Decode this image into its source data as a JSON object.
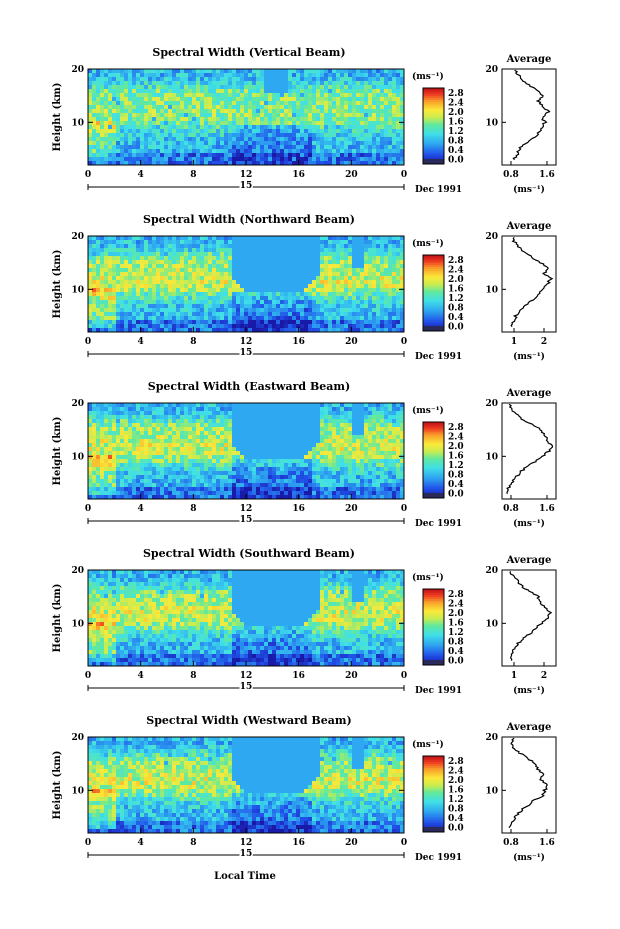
{
  "figure": {
    "xlabel": "Local Time",
    "date_label": "Dec 1991",
    "day_label": "15",
    "avg_title": "Average",
    "colorbar_unit": "(ms⁻¹)"
  },
  "chart_data": [
    {
      "type": "heatmap",
      "title": "Spectral Width (Vertical Beam)",
      "ylabel": "Height (km)",
      "xlabel": "",
      "x_ticks": [
        "0",
        "4",
        "8",
        "12",
        "16",
        "20",
        "0"
      ],
      "y_ticks": [
        "10",
        "20"
      ],
      "xlim": [
        0,
        24
      ],
      "ylim": [
        2,
        20
      ],
      "colorbar_ticks": [
        "0.0",
        "0.4",
        "0.8",
        "1.2",
        "1.6",
        "2.0",
        "2.4",
        "2.8"
      ],
      "colorbar_range": [
        0,
        3.2
      ],
      "profile": {
        "title": "Average",
        "xlabel": "(ms⁻¹)",
        "x_ticks": [
          "0.8",
          "1.6"
        ],
        "xlim": [
          0.6,
          1.8
        ],
        "y_ticks": [
          "10",
          "20"
        ],
        "points": [
          [
            0.85,
            3
          ],
          [
            0.95,
            4
          ],
          [
            0.98,
            5
          ],
          [
            1.1,
            6
          ],
          [
            1.3,
            7
          ],
          [
            1.4,
            8
          ],
          [
            1.5,
            9
          ],
          [
            1.55,
            10
          ],
          [
            1.5,
            11
          ],
          [
            1.62,
            12
          ],
          [
            1.5,
            13
          ],
          [
            1.4,
            14
          ],
          [
            1.52,
            15
          ],
          [
            1.35,
            16
          ],
          [
            1.2,
            17
          ],
          [
            1.05,
            18
          ],
          [
            0.95,
            19
          ],
          [
            0.9,
            20
          ]
        ]
      }
    },
    {
      "type": "heatmap",
      "title": "Spectral Width (Northward Beam)",
      "ylabel": "Height (km)",
      "xlabel": "",
      "x_ticks": [
        "0",
        "4",
        "8",
        "12",
        "16",
        "20",
        "0"
      ],
      "y_ticks": [
        "10",
        "20"
      ],
      "xlim": [
        0,
        24
      ],
      "ylim": [
        2,
        20
      ],
      "colorbar_ticks": [
        "0.0",
        "0.4",
        "0.8",
        "1.2",
        "1.6",
        "2.0",
        "2.4",
        "2.8"
      ],
      "colorbar_range": [
        0,
        3.2
      ],
      "profile": {
        "title": "Average",
        "xlabel": "(ms⁻¹)",
        "x_ticks": [
          "1",
          "2"
        ],
        "xlim": [
          0.6,
          2.4
        ],
        "y_ticks": [
          "10",
          "20"
        ],
        "points": [
          [
            0.9,
            3
          ],
          [
            1.0,
            4
          ],
          [
            1.05,
            5
          ],
          [
            1.2,
            6
          ],
          [
            1.4,
            7
          ],
          [
            1.6,
            8
          ],
          [
            1.8,
            9
          ],
          [
            2.0,
            10
          ],
          [
            2.1,
            11
          ],
          [
            2.25,
            12
          ],
          [
            2.0,
            13
          ],
          [
            2.1,
            14
          ],
          [
            1.9,
            15
          ],
          [
            1.6,
            16
          ],
          [
            1.3,
            17
          ],
          [
            1.15,
            18
          ],
          [
            1.0,
            19
          ],
          [
            0.95,
            20
          ]
        ]
      }
    },
    {
      "type": "heatmap",
      "title": "Spectral Width (Eastward Beam)",
      "ylabel": "Height (km)",
      "xlabel": "",
      "x_ticks": [
        "0",
        "4",
        "8",
        "12",
        "16",
        "20",
        "0"
      ],
      "y_ticks": [
        "10",
        "20"
      ],
      "xlim": [
        0,
        24
      ],
      "ylim": [
        2,
        20
      ],
      "colorbar_ticks": [
        "0.0",
        "0.4",
        "0.8",
        "1.2",
        "1.6",
        "2.0",
        "2.4",
        "2.8"
      ],
      "colorbar_range": [
        0,
        3.2
      ],
      "profile": {
        "title": "Average",
        "xlabel": "(ms⁻¹)",
        "x_ticks": [
          "0.8",
          "1.6"
        ],
        "xlim": [
          0.6,
          1.8
        ],
        "y_ticks": [
          "10",
          "20"
        ],
        "points": [
          [
            0.7,
            3
          ],
          [
            0.75,
            4
          ],
          [
            0.8,
            5
          ],
          [
            0.9,
            6
          ],
          [
            1.0,
            7
          ],
          [
            1.15,
            8
          ],
          [
            1.35,
            9
          ],
          [
            1.5,
            10
          ],
          [
            1.65,
            11
          ],
          [
            1.7,
            12
          ],
          [
            1.6,
            13
          ],
          [
            1.55,
            14
          ],
          [
            1.45,
            15
          ],
          [
            1.25,
            16
          ],
          [
            1.05,
            17
          ],
          [
            0.9,
            18
          ],
          [
            0.8,
            19
          ],
          [
            0.75,
            20
          ]
        ]
      }
    },
    {
      "type": "heatmap",
      "title": "Spectral Width (Southward Beam)",
      "ylabel": "Height (km)",
      "xlabel": "",
      "x_ticks": [
        "0",
        "4",
        "8",
        "12",
        "16",
        "20",
        "0"
      ],
      "y_ticks": [
        "10",
        "20"
      ],
      "xlim": [
        0,
        24
      ],
      "ylim": [
        2,
        20
      ],
      "colorbar_ticks": [
        "0.0",
        "0.4",
        "0.8",
        "1.2",
        "1.6",
        "2.0",
        "2.4",
        "2.8"
      ],
      "colorbar_range": [
        0,
        3.2
      ],
      "profile": {
        "title": "Average",
        "xlabel": "(ms⁻¹)",
        "x_ticks": [
          "1",
          "2"
        ],
        "xlim": [
          0.6,
          2.4
        ],
        "y_ticks": [
          "10",
          "20"
        ],
        "points": [
          [
            0.9,
            3
          ],
          [
            0.95,
            4
          ],
          [
            1.0,
            5
          ],
          [
            1.1,
            6
          ],
          [
            1.3,
            7
          ],
          [
            1.5,
            8
          ],
          [
            1.7,
            9
          ],
          [
            1.9,
            10
          ],
          [
            2.1,
            11
          ],
          [
            2.2,
            12
          ],
          [
            2.0,
            13
          ],
          [
            1.9,
            14
          ],
          [
            1.8,
            15
          ],
          [
            1.5,
            16
          ],
          [
            1.25,
            17
          ],
          [
            1.1,
            18
          ],
          [
            0.95,
            19
          ],
          [
            0.9,
            20
          ]
        ]
      }
    },
    {
      "type": "heatmap",
      "title": "Spectral Width (Westward Beam)",
      "ylabel": "Height (km)",
      "xlabel": "Local Time",
      "x_ticks": [
        "0",
        "4",
        "8",
        "12",
        "16",
        "20",
        "0"
      ],
      "y_ticks": [
        "10",
        "20"
      ],
      "xlim": [
        0,
        24
      ],
      "ylim": [
        2,
        20
      ],
      "colorbar_ticks": [
        "0.0",
        "0.4",
        "0.8",
        "1.2",
        "1.6",
        "2.0",
        "2.4",
        "2.8"
      ],
      "colorbar_range": [
        0,
        3.2
      ],
      "profile": {
        "title": "Average",
        "xlabel": "(ms⁻¹)",
        "x_ticks": [
          "0.8",
          "1.6"
        ],
        "xlim": [
          0.6,
          1.8
        ],
        "y_ticks": [
          "10",
          "20"
        ],
        "points": [
          [
            0.75,
            3
          ],
          [
            0.8,
            4
          ],
          [
            0.9,
            5
          ],
          [
            1.0,
            6
          ],
          [
            1.15,
            7
          ],
          [
            1.3,
            8
          ],
          [
            1.5,
            9
          ],
          [
            1.55,
            10
          ],
          [
            1.6,
            11
          ],
          [
            1.45,
            12
          ],
          [
            1.5,
            13
          ],
          [
            1.4,
            14
          ],
          [
            1.35,
            15
          ],
          [
            1.15,
            16
          ],
          [
            1.0,
            17
          ],
          [
            0.85,
            18
          ],
          [
            0.8,
            19
          ],
          [
            0.9,
            20
          ]
        ]
      }
    }
  ]
}
